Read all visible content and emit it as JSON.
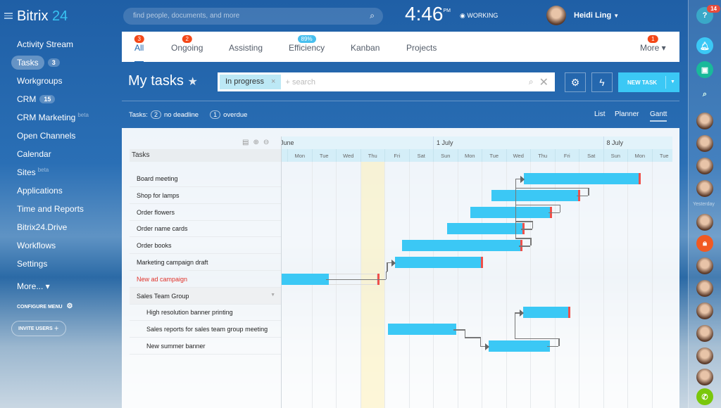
{
  "header": {
    "logo_main": "Bitrix",
    "logo_num": "24",
    "search_placeholder": "find people, documents, and more",
    "time": "4:46",
    "ampm": "PM",
    "status": "WORKING",
    "user": "Heidi Ling"
  },
  "sidebar": {
    "items": [
      {
        "label": "Activity Stream"
      },
      {
        "label": "Tasks",
        "count": "3",
        "active": true
      },
      {
        "label": "Workgroups"
      },
      {
        "label": "CRM",
        "count": "15"
      },
      {
        "label": "CRM Marketing",
        "beta": "beta"
      },
      {
        "label": "Open Channels"
      },
      {
        "label": "Calendar"
      },
      {
        "label": "Sites",
        "beta": "beta"
      },
      {
        "label": "Applications"
      },
      {
        "label": "Time and Reports"
      },
      {
        "label": "Bitrix24.Drive"
      },
      {
        "label": "Workflows"
      },
      {
        "label": "Settings"
      },
      {
        "label": "More... ▾"
      }
    ],
    "configure": "CONFIGURE MENU",
    "invite": "INVITE USERS"
  },
  "tabs": [
    {
      "label": "All",
      "badge": "3"
    },
    {
      "label": "Ongoing",
      "badge": "2"
    },
    {
      "label": "Assisting"
    },
    {
      "label": "Efficiency",
      "badge": "89%"
    },
    {
      "label": "Kanban"
    },
    {
      "label": "Projects"
    },
    {
      "label": "More ▾",
      "badge": "1"
    }
  ],
  "page": {
    "title": "My tasks",
    "filter_chip": "In progress",
    "filter_placeholder": "+ search",
    "new_task": "NEW TASK",
    "stats_label": "Tasks:",
    "no_deadline_count": "2",
    "no_deadline": "no deadline",
    "overdue_count": "1",
    "overdue": "overdue",
    "views": [
      "List",
      "Planner",
      "Gantt"
    ],
    "active_view": "Gantt"
  },
  "gantt": {
    "tasks_header": "Tasks",
    "months": [
      {
        "label": "June",
        "start": "Jun 24"
      },
      {
        "label": "1 July",
        "start": "Jul 1"
      },
      {
        "label": "8 July",
        "start": "Jul 8"
      }
    ],
    "days": [
      "Mon",
      "Tue",
      "Wed",
      "Thu",
      "Fri",
      "Sat",
      "Sun",
      "Mon",
      "Tue",
      "Wed",
      "Thu",
      "Fri",
      "Sat",
      "Sun",
      "Mon",
      "Tue"
    ],
    "first_day": "Jun 25",
    "today": "Jun 28",
    "rows": [
      {
        "name": "Board meeting",
        "start": "Jul 4 17",
        "end": "Jul 9 12",
        "deadline": true
      },
      {
        "name": "Shop for lamps",
        "start": "Jul 3 9",
        "end": "Jul 7 0",
        "deadline": true
      },
      {
        "name": "Order flowers",
        "start": "Jul 2 12",
        "end": "Jul 5 20",
        "deadline": true
      },
      {
        "name": "Order name cards",
        "start": "Jul 1 13",
        "end": "Jul 4 17",
        "deadline": true
      },
      {
        "name": "Order books",
        "start": "Jun 29 17",
        "end": "Jul 4 15",
        "deadline": true
      },
      {
        "name": "Marketing campaign draft",
        "start": "Jun 29 10",
        "end": "Jul 3 0",
        "deadline": true
      },
      {
        "name": "New ad campaign",
        "start": "Jun 24 18",
        "end": "Jun 26 16",
        "deadline_at": "Jun 28 16",
        "overdue": true
      },
      {
        "name": "Sales Team Group",
        "group": true
      },
      {
        "name": "High resolution banner printing",
        "start": "Jul 4 16",
        "end": "Jul 6 14",
        "deadline": true,
        "sub": true
      },
      {
        "name": "Sales reports for sales team group meeting",
        "start": "Jun 29 3",
        "end": "Jul 1 22",
        "sub": true
      },
      {
        "name": "New summer banner",
        "start": "Jul 3 6",
        "end": "Jul 5 19",
        "sub": true
      }
    ],
    "links": [
      [
        6,
        5
      ],
      [
        1,
        0
      ],
      [
        2,
        0
      ],
      [
        3,
        0
      ],
      [
        4,
        0
      ],
      [
        9,
        10
      ],
      [
        10,
        8
      ]
    ]
  },
  "right_bar": {
    "help_badge": "14",
    "recent_label": "Yesterday"
  },
  "colors": {
    "accent": "#3bc8f5",
    "badge": "#f44818",
    "deadline": "#f0504a",
    "call": "#7ac70c",
    "lock": "#f15a22"
  }
}
